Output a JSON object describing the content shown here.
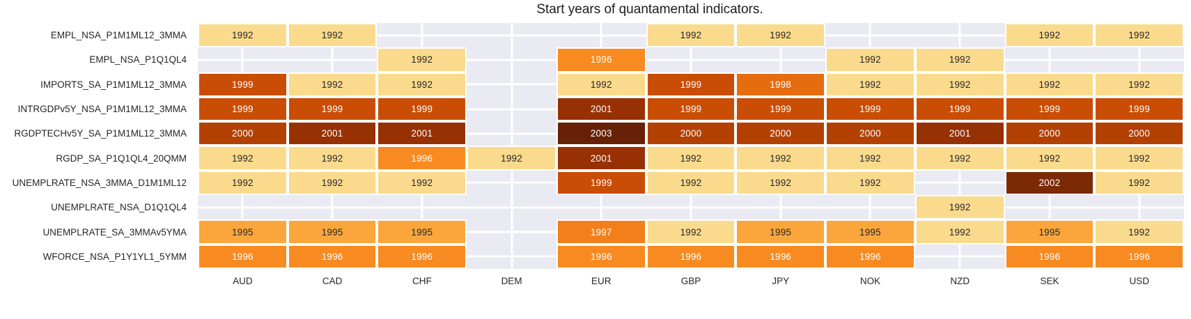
{
  "title": "Start years of quantamental indicators.",
  "chart_data": {
    "type": "heatmap",
    "title": "Start years of quantamental indicators.",
    "columns": [
      "AUD",
      "CAD",
      "CHF",
      "DEM",
      "EUR",
      "GBP",
      "JPY",
      "NOK",
      "NZD",
      "SEK",
      "USD"
    ],
    "rows": [
      "EMPL_NSA_P1M1ML12_3MMA",
      "EMPL_NSA_P1Q1QL4",
      "IMPORTS_SA_P1M1ML12_3MMA",
      "INTRGDPv5Y_NSA_P1M1ML12_3MMA",
      "RGDPTECHv5Y_SA_P1M1ML12_3MMA",
      "RGDP_SA_P1Q1QL4_20QMM",
      "UNEMPLRATE_NSA_3MMA_D1M1ML12",
      "UNEMPLRATE_NSA_D1Q1QL4",
      "UNEMPLRATE_SA_3MMAv5YMA",
      "WFORCE_NSA_P1Y1YL1_5YMM"
    ],
    "values": [
      [
        1992,
        1992,
        null,
        null,
        null,
        1992,
        1992,
        null,
        null,
        1992,
        1992
      ],
      [
        null,
        null,
        1992,
        null,
        1996,
        null,
        null,
        1992,
        1992,
        null,
        null
      ],
      [
        1999,
        1992,
        1992,
        null,
        1992,
        1999,
        1998,
        1992,
        1992,
        1992,
        1992
      ],
      [
        1999,
        1999,
        1999,
        null,
        2001,
        1999,
        1999,
        1999,
        1999,
        1999,
        1999
      ],
      [
        2000,
        2001,
        2001,
        null,
        2003,
        2000,
        2000,
        2000,
        2001,
        2000,
        2000
      ],
      [
        1992,
        1992,
        1996,
        1992,
        2001,
        1992,
        1992,
        1992,
        1992,
        1992,
        1992
      ],
      [
        1992,
        1992,
        1992,
        null,
        1999,
        1992,
        1992,
        1992,
        null,
        2002,
        1992
      ],
      [
        null,
        null,
        null,
        null,
        null,
        null,
        null,
        null,
        1992,
        null,
        null
      ],
      [
        1995,
        1995,
        1995,
        null,
        1997,
        1992,
        1995,
        1995,
        1992,
        1995,
        1992
      ],
      [
        1996,
        1996,
        1996,
        null,
        1996,
        1996,
        1996,
        1996,
        null,
        1996,
        1996
      ]
    ],
    "value_range": [
      1992,
      2003
    ],
    "colormap": "YlOrBr",
    "cell_colors": {
      "1992": {
        "bg": "#FADA8C",
        "fg": "#262626"
      },
      "1995": {
        "bg": "#FAA63C",
        "fg": "#262626"
      },
      "1996": {
        "bg": "#F78A21",
        "fg": "#FFFFFF"
      },
      "1997": {
        "bg": "#F37F1B",
        "fg": "#FFFFFF"
      },
      "1998": {
        "bg": "#E66C10",
        "fg": "#FFFFFF"
      },
      "1999": {
        "bg": "#C94D05",
        "fg": "#FFFFFF"
      },
      "2000": {
        "bg": "#B34104",
        "fg": "#FFFFFF"
      },
      "2001": {
        "bg": "#973104",
        "fg": "#FFFFFF"
      },
      "2002": {
        "bg": "#7C2A05",
        "fg": "#FFFFFF"
      },
      "2003": {
        "bg": "#672106",
        "fg": "#FFFFFF"
      }
    },
    "empty_bg": "#EAEAF2",
    "grid_color": "#FFFFFF",
    "grid": true,
    "legend": "none"
  }
}
